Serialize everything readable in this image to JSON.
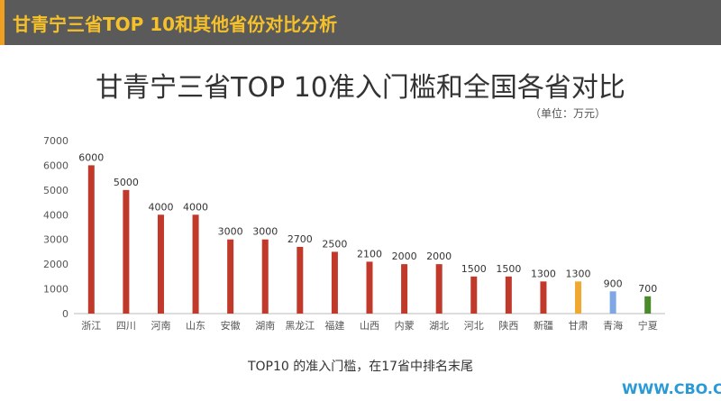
{
  "header": {
    "title": "甘青宁三省TOP 10和其他省份对比分析"
  },
  "watermark": "WWW.CBO.CN",
  "chart_data": {
    "type": "bar",
    "title": "甘青宁三省TOP 10准入门槛和全国各省对比",
    "unit": "（单位：万元）",
    "caption": "TOP10 的准入门槛，在17省中排名末尾",
    "xlabel": "",
    "ylabel": "",
    "ylim": [
      0,
      7000
    ],
    "yticks": [
      "0",
      "1000",
      "2000",
      "3000",
      "4000",
      "5000",
      "6000",
      "7000"
    ],
    "grid": false,
    "categories": [
      "浙江",
      "四川",
      "河南",
      "山东",
      "安徽",
      "湖南",
      "黑龙江",
      "福建",
      "山西",
      "内蒙",
      "湖北",
      "河北",
      "陕西",
      "新疆",
      "甘肃",
      "青海",
      "宁夏"
    ],
    "values": [
      6000,
      5000,
      4000,
      4000,
      3000,
      3000,
      2700,
      2500,
      2100,
      2000,
      2000,
      1500,
      1500,
      1300,
      1300,
      900,
      700
    ],
    "data_labels": [
      "6000",
      "5000",
      "4000",
      "4000",
      "3000",
      "3000",
      "2700",
      "2500",
      "2100",
      "2000",
      "2000",
      "1500",
      "1500",
      "1300",
      "1300",
      "900",
      "700"
    ],
    "colors": [
      "#c0392b",
      "#c0392b",
      "#c0392b",
      "#c0392b",
      "#c0392b",
      "#c0392b",
      "#c0392b",
      "#c0392b",
      "#c0392b",
      "#c0392b",
      "#c0392b",
      "#c0392b",
      "#c0392b",
      "#c0392b",
      "#f0a830",
      "#7fa7e6",
      "#4a8a2a"
    ]
  }
}
